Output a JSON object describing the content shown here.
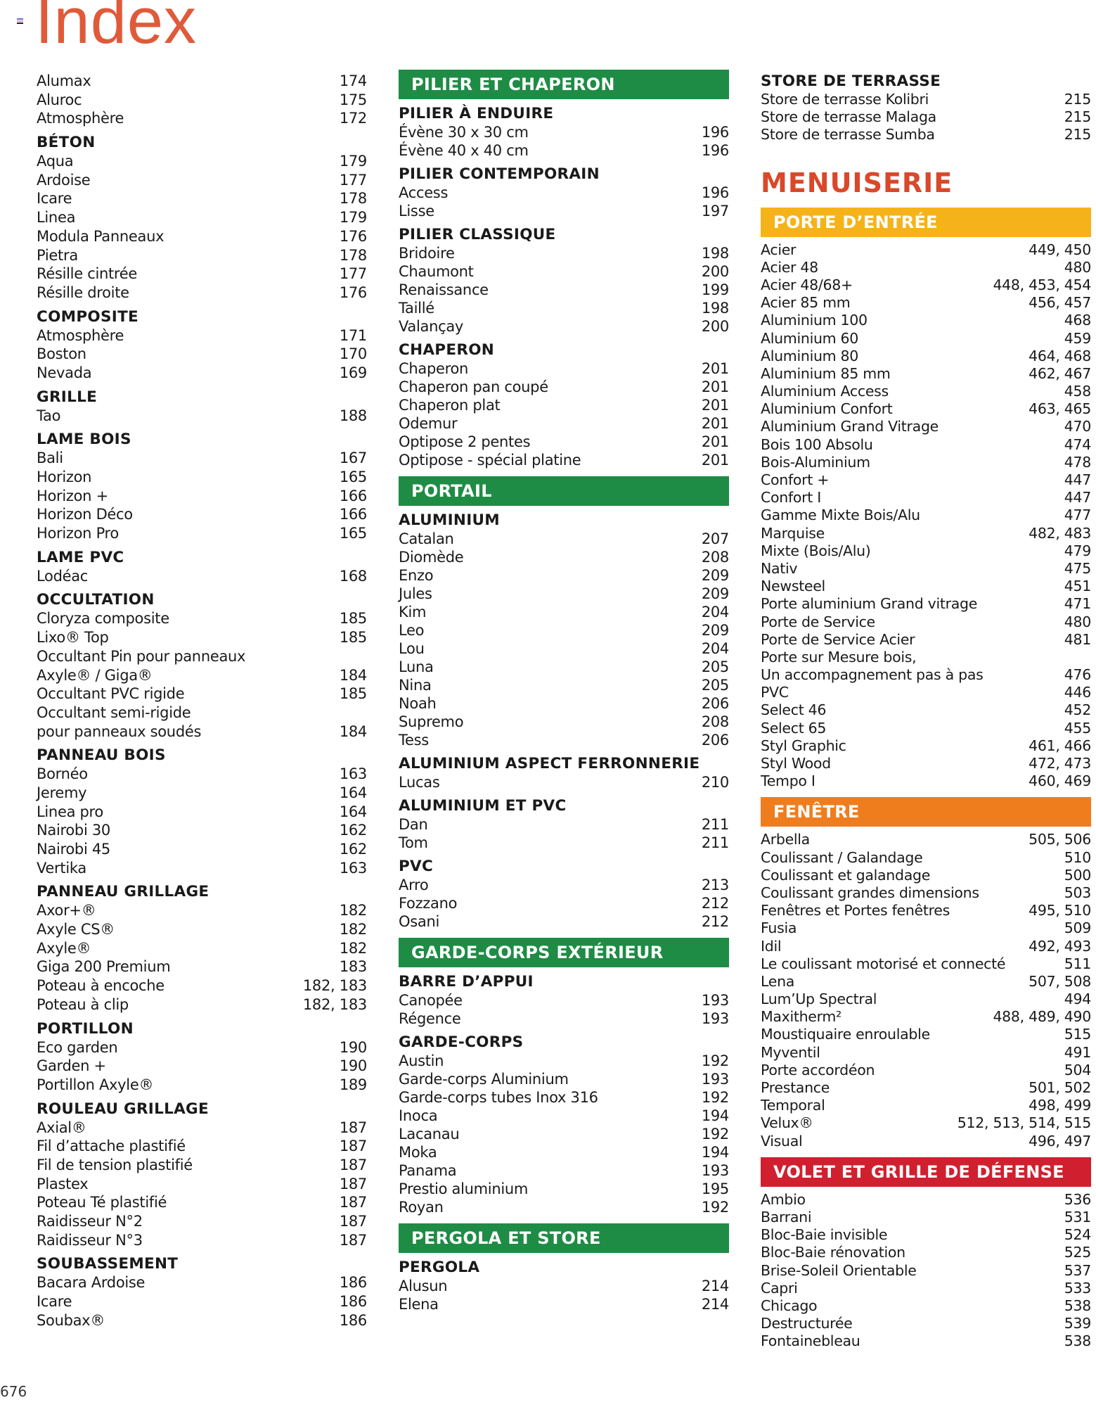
{
  "title": "Index",
  "page_number": "676",
  "colors": {
    "title": "#e05a3a",
    "green": "#1e8c45",
    "yellow": "#f6b319",
    "orange": "#ef7d1e",
    "red": "#d0202f",
    "section": "#d9482a"
  },
  "columns": [
    [
      {
        "t": "item",
        "label": "Alumax",
        "page": "174"
      },
      {
        "t": "item",
        "label": "Aluroc",
        "page": "175"
      },
      {
        "t": "item",
        "label": "Atmosphère",
        "page": "172"
      },
      {
        "t": "heading",
        "label": "BÉTON"
      },
      {
        "t": "item",
        "label": "Aqua",
        "page": "179"
      },
      {
        "t": "item",
        "label": "Ardoise",
        "page": "177"
      },
      {
        "t": "item",
        "label": "Icare",
        "page": "178"
      },
      {
        "t": "item",
        "label": "Linea",
        "page": "179"
      },
      {
        "t": "item",
        "label": "Modula Panneaux",
        "page": "176"
      },
      {
        "t": "item",
        "label": "Pietra",
        "page": "178"
      },
      {
        "t": "item",
        "label": "Résille cintrée",
        "page": "177"
      },
      {
        "t": "item",
        "label": "Résille droite",
        "page": "176"
      },
      {
        "t": "heading",
        "label": "COMPOSITE"
      },
      {
        "t": "item",
        "label": "Atmosphère",
        "page": "171"
      },
      {
        "t": "item",
        "label": "Boston",
        "page": "170"
      },
      {
        "t": "item",
        "label": "Nevada",
        "page": "169"
      },
      {
        "t": "heading",
        "label": "GRILLE"
      },
      {
        "t": "item",
        "label": "Tao",
        "page": "188"
      },
      {
        "t": "heading",
        "label": "LAME BOIS"
      },
      {
        "t": "item",
        "label": "Bali",
        "page": "167"
      },
      {
        "t": "item",
        "label": "Horizon",
        "page": "165"
      },
      {
        "t": "item",
        "label": "Horizon +",
        "page": "166"
      },
      {
        "t": "item",
        "label": "Horizon Déco",
        "page": "166"
      },
      {
        "t": "item",
        "label": "Horizon Pro",
        "page": "165"
      },
      {
        "t": "heading",
        "label": "LAME PVC"
      },
      {
        "t": "item",
        "label": "Lodéac",
        "page": "168"
      },
      {
        "t": "heading",
        "label": "OCCULTATION"
      },
      {
        "t": "item",
        "label": "Cloryza composite",
        "page": "185"
      },
      {
        "t": "item",
        "label": "Lixo® Top",
        "page": "185"
      },
      {
        "t": "item",
        "label": "Occultant Pin pour panneaux",
        "page": ""
      },
      {
        "t": "item",
        "label": "Axyle® / Giga®",
        "page": "184"
      },
      {
        "t": "item",
        "label": "Occultant PVC rigide",
        "page": "185"
      },
      {
        "t": "item",
        "label": "Occultant semi-rigide",
        "page": ""
      },
      {
        "t": "item",
        "label": "pour panneaux soudés",
        "page": "184"
      },
      {
        "t": "heading",
        "label": "PANNEAU BOIS"
      },
      {
        "t": "item",
        "label": "Bornéo",
        "page": "163"
      },
      {
        "t": "item",
        "label": "Jeremy",
        "page": "164"
      },
      {
        "t": "item",
        "label": "Linea pro",
        "page": "164"
      },
      {
        "t": "item",
        "label": "Nairobi 30",
        "page": "162"
      },
      {
        "t": "item",
        "label": "Nairobi 45",
        "page": "162"
      },
      {
        "t": "item",
        "label": "Vertika",
        "page": "163"
      },
      {
        "t": "heading",
        "label": "PANNEAU GRILLAGE"
      },
      {
        "t": "item",
        "label": "Axor+®",
        "page": "182"
      },
      {
        "t": "item",
        "label": "Axyle CS®",
        "page": "182"
      },
      {
        "t": "item",
        "label": "Axyle®",
        "page": "182"
      },
      {
        "t": "item",
        "label": "Giga 200 Premium",
        "page": "183"
      },
      {
        "t": "item",
        "label": "Poteau à encoche",
        "page": "182, 183"
      },
      {
        "t": "item",
        "label": "Poteau à clip",
        "page": "182, 183"
      },
      {
        "t": "heading",
        "label": "PORTILLON"
      },
      {
        "t": "item",
        "label": "Eco garden",
        "page": "190"
      },
      {
        "t": "item",
        "label": "Garden +",
        "page": "190"
      },
      {
        "t": "item",
        "label": "Portillon Axyle®",
        "page": "189"
      },
      {
        "t": "heading",
        "label": "ROULEAU GRILLAGE"
      },
      {
        "t": "item",
        "label": "Axial®",
        "page": "187"
      },
      {
        "t": "item",
        "label": "Fil d’attache plastifié",
        "page": "187"
      },
      {
        "t": "item",
        "label": "Fil de tension plastifié",
        "page": "187"
      },
      {
        "t": "item",
        "label": "Plastex",
        "page": "187"
      },
      {
        "t": "item",
        "label": "Poteau Té plastifié",
        "page": "187"
      },
      {
        "t": "item",
        "label": "Raidisseur N°2",
        "page": "187"
      },
      {
        "t": "item",
        "label": "Raidisseur N°3",
        "page": "187"
      },
      {
        "t": "heading",
        "label": "SOUBASSEMENT"
      },
      {
        "t": "item",
        "label": "Bacara Ardoise",
        "page": "186"
      },
      {
        "t": "item",
        "label": "Icare",
        "page": "186"
      },
      {
        "t": "item",
        "label": "Soubax®",
        "page": "186"
      }
    ],
    [
      {
        "t": "band",
        "label": "PILIER ET CHAPERON",
        "color": "green"
      },
      {
        "t": "heading",
        "label": "PILIER À ENDUIRE"
      },
      {
        "t": "item",
        "label": "Évène 30 x 30 cm",
        "page": "196"
      },
      {
        "t": "item",
        "label": "Évène 40 x 40 cm",
        "page": "196"
      },
      {
        "t": "heading",
        "label": "PILIER CONTEMPORAIN"
      },
      {
        "t": "item",
        "label": "Access",
        "page": "196"
      },
      {
        "t": "item",
        "label": "Lisse",
        "page": "197"
      },
      {
        "t": "heading",
        "label": "PILIER CLASSIQUE"
      },
      {
        "t": "item",
        "label": "Bridoire",
        "page": "198"
      },
      {
        "t": "item",
        "label": "Chaumont",
        "page": "200"
      },
      {
        "t": "item",
        "label": "Renaissance",
        "page": "199"
      },
      {
        "t": "item",
        "label": "Taillé",
        "page": "198"
      },
      {
        "t": "item",
        "label": "Valançay",
        "page": "200"
      },
      {
        "t": "heading",
        "label": "CHAPERON"
      },
      {
        "t": "item",
        "label": "Chaperon",
        "page": "201"
      },
      {
        "t": "item",
        "label": "Chaperon pan coupé",
        "page": "201"
      },
      {
        "t": "item",
        "label": "Chaperon plat",
        "page": "201"
      },
      {
        "t": "item",
        "label": "Odemur",
        "page": "201"
      },
      {
        "t": "item",
        "label": "Optipose 2 pentes",
        "page": "201"
      },
      {
        "t": "item",
        "label": "Optipose - spécial platine",
        "page": "201"
      },
      {
        "t": "band",
        "label": "PORTAIL",
        "color": "green"
      },
      {
        "t": "heading",
        "label": "ALUMINIUM"
      },
      {
        "t": "item",
        "label": "Catalan",
        "page": "207"
      },
      {
        "t": "item",
        "label": "Diomède",
        "page": "208"
      },
      {
        "t": "item",
        "label": "Enzo",
        "page": "209"
      },
      {
        "t": "item",
        "label": "Jules",
        "page": "209"
      },
      {
        "t": "item",
        "label": "Kim",
        "page": "204"
      },
      {
        "t": "item",
        "label": "Leo",
        "page": "209"
      },
      {
        "t": "item",
        "label": "Lou",
        "page": "204"
      },
      {
        "t": "item",
        "label": "Luna",
        "page": "205"
      },
      {
        "t": "item",
        "label": "Nina",
        "page": "205"
      },
      {
        "t": "item",
        "label": "Noah",
        "page": "206"
      },
      {
        "t": "item",
        "label": "Supremo",
        "page": "208"
      },
      {
        "t": "item",
        "label": "Tess",
        "page": "206"
      },
      {
        "t": "heading",
        "label": "ALUMINIUM ASPECT FERRONNERIE"
      },
      {
        "t": "item",
        "label": "Lucas",
        "page": "210"
      },
      {
        "t": "heading",
        "label": "ALUMINIUM ET PVC"
      },
      {
        "t": "item",
        "label": "Dan",
        "page": "211"
      },
      {
        "t": "item",
        "label": "Tom",
        "page": "211"
      },
      {
        "t": "heading",
        "label": "PVC"
      },
      {
        "t": "item",
        "label": "Arro",
        "page": "213"
      },
      {
        "t": "item",
        "label": "Fozzano",
        "page": "212"
      },
      {
        "t": "item",
        "label": "Osani",
        "page": "212"
      },
      {
        "t": "band",
        "label": "GARDE-CORPS EXTÉRIEUR",
        "color": "green"
      },
      {
        "t": "heading",
        "label": "BARRE D’APPUI"
      },
      {
        "t": "item",
        "label": "Canopée",
        "page": "193"
      },
      {
        "t": "item",
        "label": "Régence",
        "page": "193"
      },
      {
        "t": "heading",
        "label": "GARDE-CORPS"
      },
      {
        "t": "item",
        "label": "Austin",
        "page": "192"
      },
      {
        "t": "item",
        "label": "Garde-corps Aluminium",
        "page": "193"
      },
      {
        "t": "item",
        "label": "Garde-corps tubes Inox 316",
        "page": "192"
      },
      {
        "t": "item",
        "label": "Inoca",
        "page": "194"
      },
      {
        "t": "item",
        "label": "Lacanau",
        "page": "192"
      },
      {
        "t": "item",
        "label": "Moka",
        "page": "194"
      },
      {
        "t": "item",
        "label": "Panama",
        "page": "193"
      },
      {
        "t": "item",
        "label": "Prestio aluminium",
        "page": "195"
      },
      {
        "t": "item",
        "label": "Royan",
        "page": "192"
      },
      {
        "t": "band",
        "label": "PERGOLA ET STORE",
        "color": "green"
      },
      {
        "t": "heading",
        "label": "PERGOLA"
      },
      {
        "t": "item",
        "label": "Alusun",
        "page": "214"
      },
      {
        "t": "item",
        "label": "Elena",
        "page": "214"
      }
    ],
    [
      {
        "t": "heading",
        "label": "STORE DE TERRASSE"
      },
      {
        "t": "item",
        "label": "Store de terrasse Kolibri",
        "page": "215"
      },
      {
        "t": "item",
        "label": "Store de terrasse Malaga",
        "page": "215"
      },
      {
        "t": "item",
        "label": "Store de terrasse Sumba",
        "page": "215"
      },
      {
        "t": "section",
        "label": "MENUISERIE"
      },
      {
        "t": "band",
        "label": "PORTE D’ENTRÉE",
        "color": "yellow"
      },
      {
        "t": "item",
        "label": "Acier",
        "page": "449, 450"
      },
      {
        "t": "item",
        "label": "Acier 48",
        "page": "480"
      },
      {
        "t": "item",
        "label": "Acier 48/68+",
        "page": "448, 453, 454"
      },
      {
        "t": "item",
        "label": "Acier 85 mm",
        "page": "456, 457"
      },
      {
        "t": "item",
        "label": "Aluminium 100",
        "page": "468"
      },
      {
        "t": "item",
        "label": "Aluminium 60",
        "page": "459"
      },
      {
        "t": "item",
        "label": "Aluminium 80",
        "page": "464, 468"
      },
      {
        "t": "item",
        "label": "Aluminium 85 mm",
        "page": "462, 467"
      },
      {
        "t": "item",
        "label": "Aluminium Access",
        "page": "458"
      },
      {
        "t": "item",
        "label": "Aluminium Confort",
        "page": "463, 465"
      },
      {
        "t": "item",
        "label": "Aluminium Grand Vitrage",
        "page": "470"
      },
      {
        "t": "item",
        "label": "Bois 100 Absolu",
        "page": "474"
      },
      {
        "t": "item",
        "label": "Bois-Aluminium",
        "page": "478"
      },
      {
        "t": "item",
        "label": "Confort +",
        "page": "447"
      },
      {
        "t": "item",
        "label": "Confort I",
        "page": "447"
      },
      {
        "t": "item",
        "label": "Gamme Mixte Bois/Alu",
        "page": "477"
      },
      {
        "t": "item",
        "label": "Marquise",
        "page": "482, 483"
      },
      {
        "t": "item",
        "label": "Mixte (Bois/Alu)",
        "page": "479"
      },
      {
        "t": "item",
        "label": "Nativ",
        "page": "475"
      },
      {
        "t": "item",
        "label": "Newsteel",
        "page": "451"
      },
      {
        "t": "item",
        "label": "Porte aluminium Grand vitrage",
        "page": "471"
      },
      {
        "t": "item",
        "label": "Porte de Service",
        "page": "480"
      },
      {
        "t": "item",
        "label": "Porte de Service Acier",
        "page": "481"
      },
      {
        "t": "item",
        "label": "Porte sur Mesure bois,",
        "page": ""
      },
      {
        "t": "item",
        "label": "Un accompagnement pas à pas",
        "page": "476"
      },
      {
        "t": "item",
        "label": "PVC",
        "page": "446"
      },
      {
        "t": "item",
        "label": "Select 46",
        "page": "452"
      },
      {
        "t": "item",
        "label": "Select 65",
        "page": "455"
      },
      {
        "t": "item",
        "label": "Styl Graphic",
        "page": "461, 466"
      },
      {
        "t": "item",
        "label": "Styl Wood",
        "page": "472, 473"
      },
      {
        "t": "item",
        "label": "Tempo I",
        "page": "460, 469"
      },
      {
        "t": "band",
        "label": "FENÊTRE",
        "color": "orange"
      },
      {
        "t": "item",
        "label": "Arbella",
        "page": "505, 506"
      },
      {
        "t": "item",
        "label": "Coulissant / Galandage",
        "page": "510"
      },
      {
        "t": "item",
        "label": "Coulissant et galandage",
        "page": "500"
      },
      {
        "t": "item",
        "label": "Coulissant grandes dimensions",
        "page": "503"
      },
      {
        "t": "item",
        "label": "Fenêtres et Portes fenêtres",
        "page": "495, 510"
      },
      {
        "t": "item",
        "label": "Fusia",
        "page": "509"
      },
      {
        "t": "item",
        "label": "Idil",
        "page": "492, 493"
      },
      {
        "t": "item",
        "label": "Le coulissant motorisé et connecté",
        "page": "511"
      },
      {
        "t": "item",
        "label": "Lena",
        "page": "507, 508"
      },
      {
        "t": "item",
        "label": "Lum’Up Spectral",
        "page": "494"
      },
      {
        "t": "item",
        "label": "Maxitherm²",
        "page": "488, 489, 490"
      },
      {
        "t": "item",
        "label": "Moustiquaire enroulable",
        "page": "515"
      },
      {
        "t": "item",
        "label": "Myventil",
        "page": "491"
      },
      {
        "t": "item",
        "label": "Porte accordéon",
        "page": "504"
      },
      {
        "t": "item",
        "label": "Prestance",
        "page": "501, 502"
      },
      {
        "t": "item",
        "label": "Temporal",
        "page": "498, 499"
      },
      {
        "t": "item",
        "label": "Velux®",
        "page": "512, 513, 514, 515"
      },
      {
        "t": "item",
        "label": "Visual",
        "page": "496, 497"
      },
      {
        "t": "band",
        "label": "VOLET ET GRILLE DE DÉFENSE",
        "color": "red"
      },
      {
        "t": "item",
        "label": "Ambio",
        "page": "536"
      },
      {
        "t": "item",
        "label": "Barrani",
        "page": "531"
      },
      {
        "t": "item",
        "label": "Bloc-Baie invisible",
        "page": "524"
      },
      {
        "t": "item",
        "label": "Bloc-Baie rénovation",
        "page": "525"
      },
      {
        "t": "item",
        "label": "Brise-Soleil Orientable",
        "page": "537"
      },
      {
        "t": "item",
        "label": "Capri",
        "page": "533"
      },
      {
        "t": "item",
        "label": "Chicago",
        "page": "538"
      },
      {
        "t": "item",
        "label": "Destructurée",
        "page": "539"
      },
      {
        "t": "item",
        "label": "Fontainebleau",
        "page": "538"
      }
    ]
  ]
}
